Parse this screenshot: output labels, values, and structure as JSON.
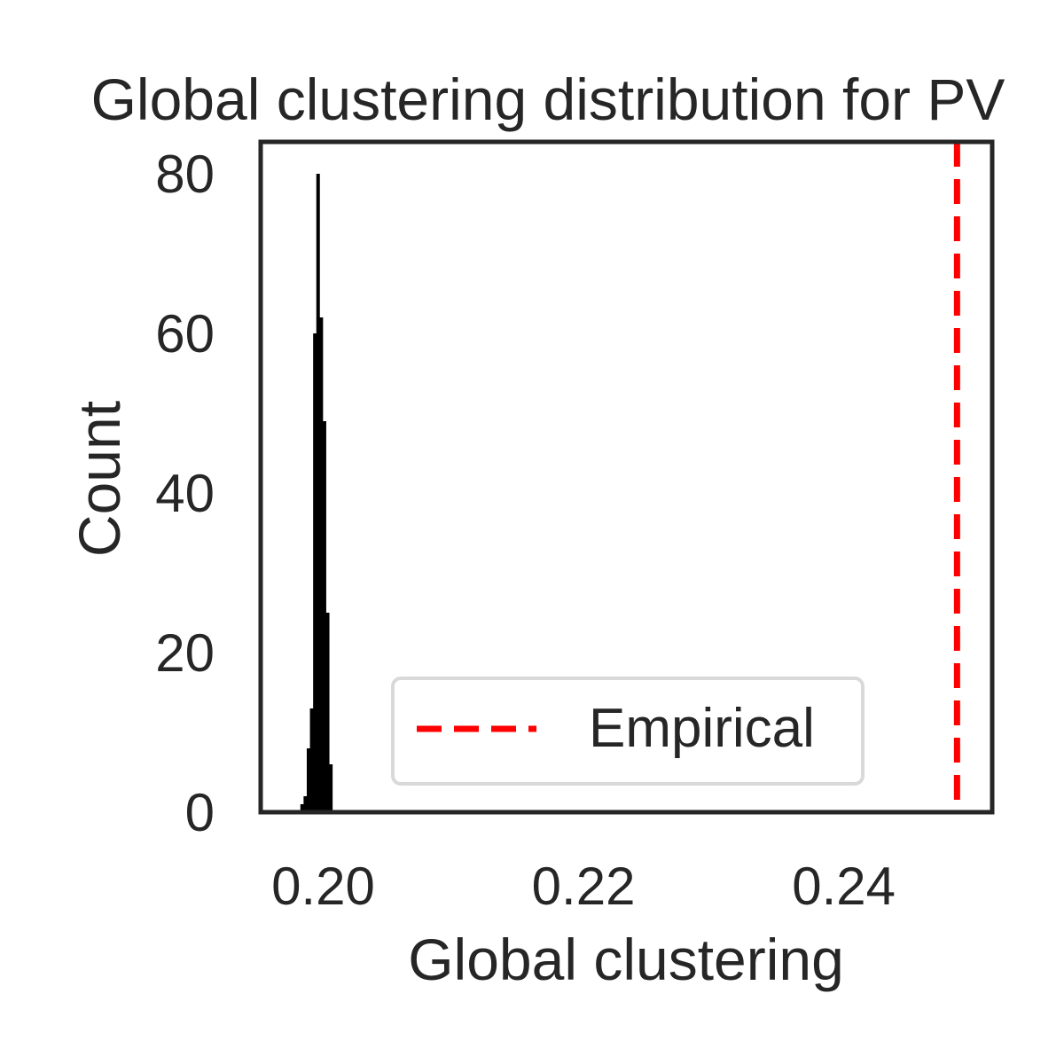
{
  "chart_data": {
    "type": "histogram",
    "title": "Global clustering distribution for PV",
    "xlabel": "Global clustering",
    "ylabel": "Count",
    "xlim": [
      0.1952,
      0.2514
    ],
    "ylim": [
      0,
      84
    ],
    "x_ticks": [
      {
        "value": 0.2,
        "label": "0.20"
      },
      {
        "value": 0.22,
        "label": "0.22"
      },
      {
        "value": 0.24,
        "label": "0.24"
      }
    ],
    "y_ticks": [
      {
        "value": 0,
        "label": "0"
      },
      {
        "value": 20,
        "label": "20"
      },
      {
        "value": 40,
        "label": "40"
      },
      {
        "value": 60,
        "label": "60"
      },
      {
        "value": 80,
        "label": "80"
      }
    ],
    "bin_width": 0.000245,
    "bins": [
      {
        "x": 0.19825,
        "count": 1
      },
      {
        "x": 0.198495,
        "count": 2
      },
      {
        "x": 0.19874,
        "count": 8
      },
      {
        "x": 0.198985,
        "count": 13
      },
      {
        "x": 0.19923,
        "count": 60
      },
      {
        "x": 0.199475,
        "count": 80
      },
      {
        "x": 0.19972,
        "count": 62
      },
      {
        "x": 0.199965,
        "count": 49
      },
      {
        "x": 0.20021,
        "count": 25
      },
      {
        "x": 0.200455,
        "count": 6
      }
    ],
    "bar_color": "#000000",
    "reference_line": {
      "x": 0.2487,
      "label": "Empirical",
      "color": "#ff0000",
      "style": "dashed"
    },
    "legend": {
      "position": "lower-center",
      "entries": [
        {
          "label": "Empirical",
          "color": "#ff0000",
          "style": "dashed"
        }
      ]
    },
    "grid": false
  }
}
